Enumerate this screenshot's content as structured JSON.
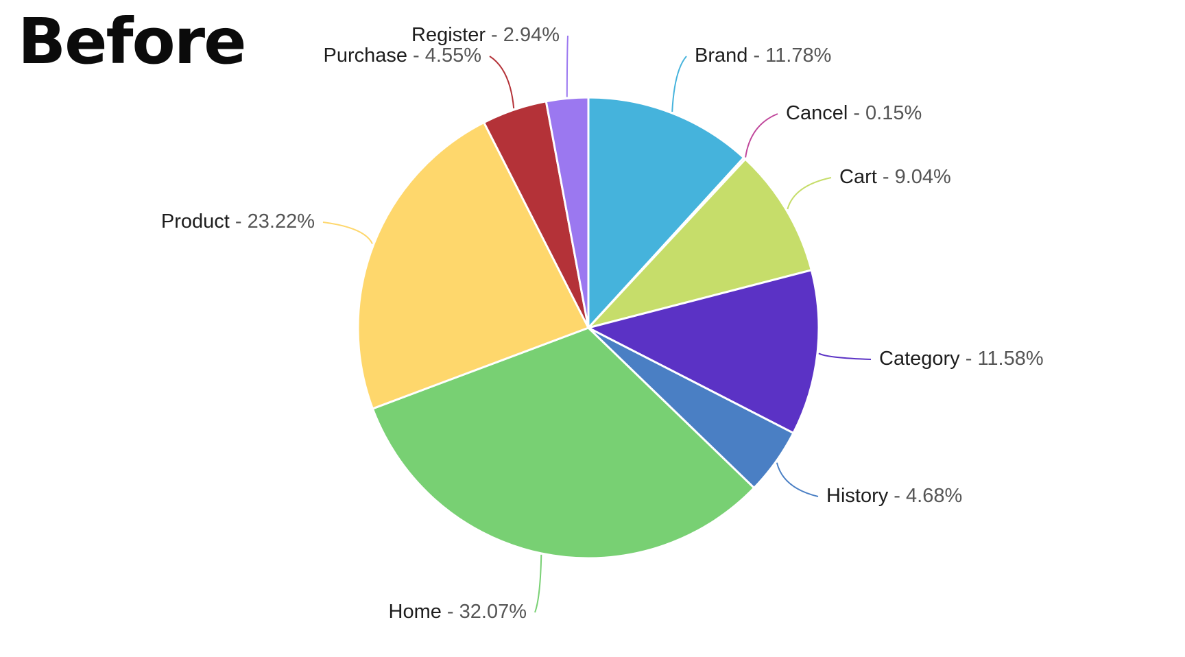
{
  "heading": "Before",
  "chart_data": {
    "type": "pie",
    "title": "",
    "start_angle_deg": 0,
    "direction": "clockwise",
    "legend": "none",
    "label_separator": " - ",
    "slices": [
      {
        "label": "Brand",
        "value": 11.78,
        "display": "11.78%",
        "color": "#45b3dc"
      },
      {
        "label": "Cancel",
        "value": 0.15,
        "display": "0.15%",
        "color": "#c0479b"
      },
      {
        "label": "Cart",
        "value": 9.04,
        "display": "9.04%",
        "color": "#c6dd6a"
      },
      {
        "label": "Category",
        "value": 11.58,
        "display": "11.58%",
        "color": "#5b32c5"
      },
      {
        "label": "History",
        "value": 4.68,
        "display": "4.68%",
        "color": "#4a7fc4"
      },
      {
        "label": "Home",
        "value": 32.07,
        "display": "32.07%",
        "color": "#78d073"
      },
      {
        "label": "Product",
        "value": 23.22,
        "display": "23.22%",
        "color": "#fed76c"
      },
      {
        "label": "Purchase",
        "value": 4.55,
        "display": "4.55%",
        "color": "#b43238"
      },
      {
        "label": "Register",
        "value": 2.94,
        "display": "2.94%",
        "color": "#9b78f0"
      }
    ]
  }
}
